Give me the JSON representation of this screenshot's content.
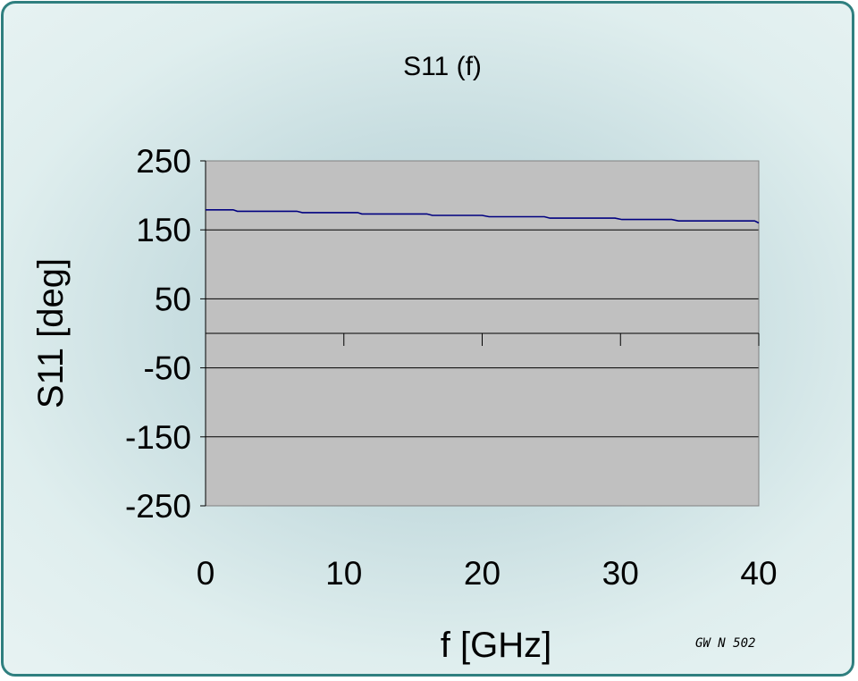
{
  "chart_data": {
    "type": "line",
    "title": "S11 (f)",
    "xlabel": "f [GHz]",
    "ylabel": "S11 [deg]",
    "xlim": [
      0,
      40
    ],
    "ylim": [
      -250,
      250
    ],
    "x_ticks": [
      0,
      10,
      20,
      30,
      40
    ],
    "y_ticks": [
      250,
      150,
      50,
      -50,
      -150,
      -250
    ],
    "grid": "horizontal",
    "plot_background": "#c0c0c0",
    "line_color": "#000080",
    "series": [
      {
        "x": [
          0,
          2,
          2.3,
          6.6,
          7,
          11,
          11.3,
          16,
          16.4,
          20,
          20.5,
          24.5,
          24.9,
          29.6,
          30.1,
          33.7,
          34.2,
          39.7,
          40
        ],
        "values": [
          179,
          179,
          177,
          177,
          175,
          175,
          173,
          173,
          171,
          171,
          169,
          169,
          167,
          167,
          165,
          165,
          163,
          163,
          160
        ]
      }
    ],
    "annotation": "GW N 502"
  }
}
